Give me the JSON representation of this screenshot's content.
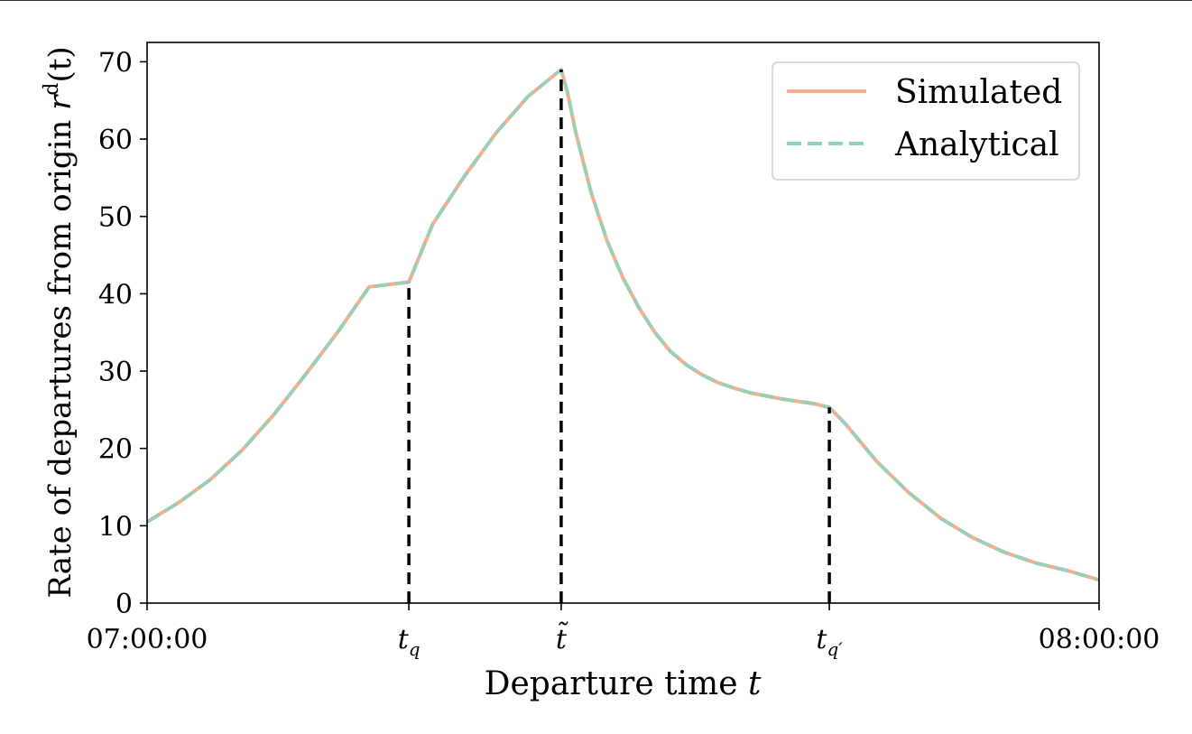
{
  "chart_data": {
    "type": "line",
    "xlabel_prefix": "Departure time",
    "xlabel_var": "t",
    "ylabel_prefix": "Rate of departures from origin",
    "ylabel_var": "r",
    "ylabel_sup": "d",
    "ylabel_arg": "(t)",
    "ylim": [
      0,
      72.5
    ],
    "xlim": [
      0,
      60
    ],
    "x_unit": "minutes after 07:00:00",
    "yticks": [
      0,
      10,
      20,
      30,
      40,
      50,
      60,
      70
    ],
    "xticks": [
      {
        "value": 0,
        "label": "07:00:00",
        "sub": ""
      },
      {
        "value": 16.5,
        "label": "t",
        "sub": "q"
      },
      {
        "value": 26.1,
        "label": "t̃",
        "sub": ""
      },
      {
        "value": 43.0,
        "label": "t",
        "sub": "q′"
      },
      {
        "value": 60,
        "label": "08:00:00",
        "sub": ""
      }
    ],
    "vlines": [
      {
        "x": 16.5,
        "y": 41.5
      },
      {
        "x": 26.1,
        "y": 69.0
      },
      {
        "x": 43.0,
        "y": 25.3
      }
    ],
    "grid": false,
    "legend_position": "top-right",
    "series": [
      {
        "name": "Simulated",
        "style": "solid",
        "color": "#f9ad8e",
        "x": [
          0,
          2,
          4,
          6,
          8,
          10,
          12,
          14,
          16.5,
          18,
          20,
          22,
          24,
          26.1,
          26.5,
          27,
          28,
          29,
          30,
          31,
          32,
          33,
          34,
          35,
          36,
          37,
          38,
          40,
          42,
          43.0,
          44,
          46,
          48,
          50,
          52,
          54,
          56,
          58,
          60
        ],
        "y": [
          10.5,
          13.0,
          16.0,
          19.8,
          24.4,
          29.6,
          35.0,
          40.9,
          41.5,
          49.0,
          55.2,
          60.8,
          65.5,
          69.0,
          66.0,
          61.0,
          53.0,
          46.8,
          42.0,
          38.2,
          35.0,
          32.5,
          30.8,
          29.5,
          28.5,
          27.8,
          27.2,
          26.4,
          25.8,
          25.3,
          23.2,
          18.3,
          14.3,
          11.0,
          8.5,
          6.6,
          5.2,
          4.2,
          3.0
        ]
      },
      {
        "name": "Analytical",
        "style": "dashed",
        "color": "#8dd3b8",
        "x": [
          0,
          2,
          4,
          6,
          8,
          10,
          12,
          14,
          16.5,
          18,
          20,
          22,
          24,
          26.1,
          26.5,
          27,
          28,
          29,
          30,
          31,
          32,
          33,
          34,
          35,
          36,
          37,
          38,
          40,
          42,
          43.0,
          44,
          46,
          48,
          50,
          52,
          54,
          56,
          58,
          60
        ],
        "y": [
          10.5,
          13.0,
          16.0,
          19.8,
          24.4,
          29.6,
          35.0,
          40.9,
          41.5,
          49.0,
          55.2,
          60.8,
          65.5,
          69.0,
          66.0,
          61.0,
          53.0,
          46.8,
          42.0,
          38.2,
          35.0,
          32.5,
          30.8,
          29.5,
          28.5,
          27.8,
          27.2,
          26.4,
          25.8,
          25.3,
          23.2,
          18.3,
          14.3,
          11.0,
          8.5,
          6.6,
          5.2,
          4.2,
          3.0
        ]
      }
    ]
  },
  "legend": {
    "items": [
      {
        "label": "Simulated",
        "color": "#f9ad8e",
        "style": "solid"
      },
      {
        "label": "Analytical",
        "color": "#8dd3b8",
        "style": "dashed"
      }
    ]
  }
}
